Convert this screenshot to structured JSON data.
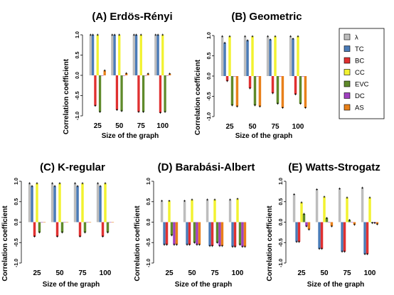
{
  "figure": {
    "legend": [
      {
        "key": "lambda",
        "label": "λ",
        "color": "#bdbdbd"
      },
      {
        "key": "TC",
        "label": "TC",
        "color": "#4a7bb7"
      },
      {
        "key": "BC",
        "label": "BC",
        "color": "#e03030"
      },
      {
        "key": "CC",
        "label": "CC",
        "color": "#f2f230"
      },
      {
        "key": "EVC",
        "label": "EVC",
        "color": "#5f8a2a"
      },
      {
        "key": "DC",
        "label": "DC",
        "color": "#a040c0"
      },
      {
        "key": "AS",
        "label": "AS",
        "color": "#e8801a"
      }
    ]
  },
  "chart_data": [
    {
      "type": "bar",
      "title": "(A) Erdös-Rényi",
      "xlabel": "Size of the graph",
      "ylabel": "Correlation coefficient",
      "categories": [
        "25",
        "50",
        "75",
        "100"
      ],
      "ylim": [
        -1,
        1
      ],
      "yticks": [
        "-1.0",
        "-0.5",
        "0.0",
        "0.5",
        "1.0"
      ],
      "series": [
        {
          "key": "lambda",
          "values": [
            1.0,
            1.0,
            1.0,
            1.0
          ]
        },
        {
          "key": "TC",
          "values": [
            1.0,
            1.0,
            1.0,
            1.0
          ]
        },
        {
          "key": "BC",
          "values": [
            -0.75,
            -0.85,
            -0.9,
            -0.92
          ]
        },
        {
          "key": "CC",
          "values": [
            1.0,
            1.0,
            1.0,
            1.0
          ]
        },
        {
          "key": "EVC",
          "values": [
            -0.9,
            -0.88,
            -0.9,
            -0.9
          ]
        },
        {
          "key": "DC",
          "values": [
            0.0,
            0.0,
            0.0,
            0.0
          ]
        },
        {
          "key": "AS",
          "values": [
            0.12,
            0.05,
            0.04,
            0.04
          ]
        }
      ]
    },
    {
      "type": "bar",
      "title": "(B) Geometric",
      "xlabel": "Size of the graph",
      "ylabel": "Correlation coefficient",
      "categories": [
        "25",
        "50",
        "75",
        "100"
      ],
      "ylim": [
        -1,
        1
      ],
      "yticks": [
        "-1.0",
        "-0.5",
        "0.0",
        "0.5",
        "1.0"
      ],
      "series": [
        {
          "key": "lambda",
          "values": [
            0.98,
            0.98,
            0.98,
            0.98
          ]
        },
        {
          "key": "TC",
          "values": [
            0.82,
            0.88,
            0.9,
            0.92
          ]
        },
        {
          "key": "BC",
          "values": [
            -0.12,
            -0.3,
            -0.42,
            -0.45
          ]
        },
        {
          "key": "CC",
          "values": [
            0.98,
            0.98,
            0.98,
            0.98
          ]
        },
        {
          "key": "EVC",
          "values": [
            -0.72,
            -0.72,
            -0.68,
            -0.68
          ]
        },
        {
          "key": "DC",
          "values": [
            0.0,
            0.0,
            0.0,
            0.0
          ]
        },
        {
          "key": "AS",
          "values": [
            -0.75,
            -0.75,
            -0.78,
            -0.78
          ]
        }
      ]
    },
    {
      "type": "bar",
      "title": "(C) K-regular",
      "xlabel": "Size of the graph",
      "ylabel": "Correlation coefficient",
      "categories": [
        "25",
        "50",
        "75",
        "100"
      ],
      "ylim": [
        -1,
        1
      ],
      "yticks": [
        "-1.0",
        "-0.5",
        "0.0",
        "0.5",
        "1.0"
      ],
      "series": [
        {
          "key": "lambda",
          "values": [
            0.95,
            0.95,
            0.95,
            0.95
          ]
        },
        {
          "key": "TC",
          "values": [
            0.88,
            0.88,
            0.88,
            0.88
          ]
        },
        {
          "key": "BC",
          "values": [
            -0.35,
            -0.35,
            -0.35,
            -0.35
          ]
        },
        {
          "key": "CC",
          "values": [
            0.95,
            0.95,
            0.95,
            0.95
          ]
        },
        {
          "key": "EVC",
          "values": [
            -0.25,
            -0.25,
            -0.25,
            -0.25
          ]
        },
        {
          "key": "DC",
          "values": [
            0.0,
            0.0,
            0.0,
            0.0
          ]
        },
        {
          "key": "AS",
          "values": [
            0.0,
            0.0,
            0.0,
            0.0
          ]
        }
      ]
    },
    {
      "type": "bar",
      "title": "(D) Barabási-Albert",
      "xlabel": "Size of the graph",
      "ylabel": "Correlation coefficient",
      "categories": [
        "25",
        "50",
        "75",
        "100"
      ],
      "ylim": [
        -1,
        1
      ],
      "yticks": [
        "-1.0",
        "-0.5",
        "0.0",
        "0.5",
        "1.0"
      ],
      "series": [
        {
          "key": "lambda",
          "values": [
            0.52,
            0.52,
            0.55,
            0.55
          ]
        },
        {
          "key": "TC",
          "values": [
            -0.55,
            -0.55,
            -0.58,
            -0.6
          ]
        },
        {
          "key": "BC",
          "values": [
            -0.55,
            -0.55,
            -0.58,
            -0.6
          ]
        },
        {
          "key": "CC",
          "values": [
            0.52,
            0.55,
            0.55,
            0.57
          ]
        },
        {
          "key": "EVC",
          "values": [
            -0.32,
            -0.5,
            -0.5,
            -0.55
          ]
        },
        {
          "key": "DC",
          "values": [
            -0.55,
            -0.55,
            -0.58,
            -0.6
          ]
        },
        {
          "key": "AS",
          "values": [
            -0.55,
            -0.55,
            -0.58,
            -0.6
          ]
        }
      ]
    },
    {
      "type": "bar",
      "title": "(E) Watts-Strogatz",
      "xlabel": "Size of the graph",
      "ylabel": "Correlation coefficient",
      "categories": [
        "25",
        "50",
        "75",
        "100"
      ],
      "ylim": [
        -1,
        1
      ],
      "yticks": [
        "-1.0",
        "-0.5",
        "0.0",
        "0.5",
        "1.0"
      ],
      "series": [
        {
          "key": "lambda",
          "values": [
            0.68,
            0.8,
            0.82,
            0.84
          ]
        },
        {
          "key": "TC",
          "values": [
            -0.48,
            -0.65,
            -0.72,
            -0.78
          ]
        },
        {
          "key": "BC",
          "values": [
            -0.48,
            -0.65,
            -0.72,
            -0.78
          ]
        },
        {
          "key": "CC",
          "values": [
            0.48,
            0.62,
            0.6,
            0.6
          ]
        },
        {
          "key": "EVC",
          "values": [
            0.2,
            0.1,
            0.05,
            -0.02
          ]
        },
        {
          "key": "DC",
          "values": [
            -0.1,
            0.0,
            0.0,
            -0.02
          ]
        },
        {
          "key": "AS",
          "values": [
            -0.18,
            -0.1,
            -0.06,
            -0.05
          ]
        }
      ]
    }
  ]
}
